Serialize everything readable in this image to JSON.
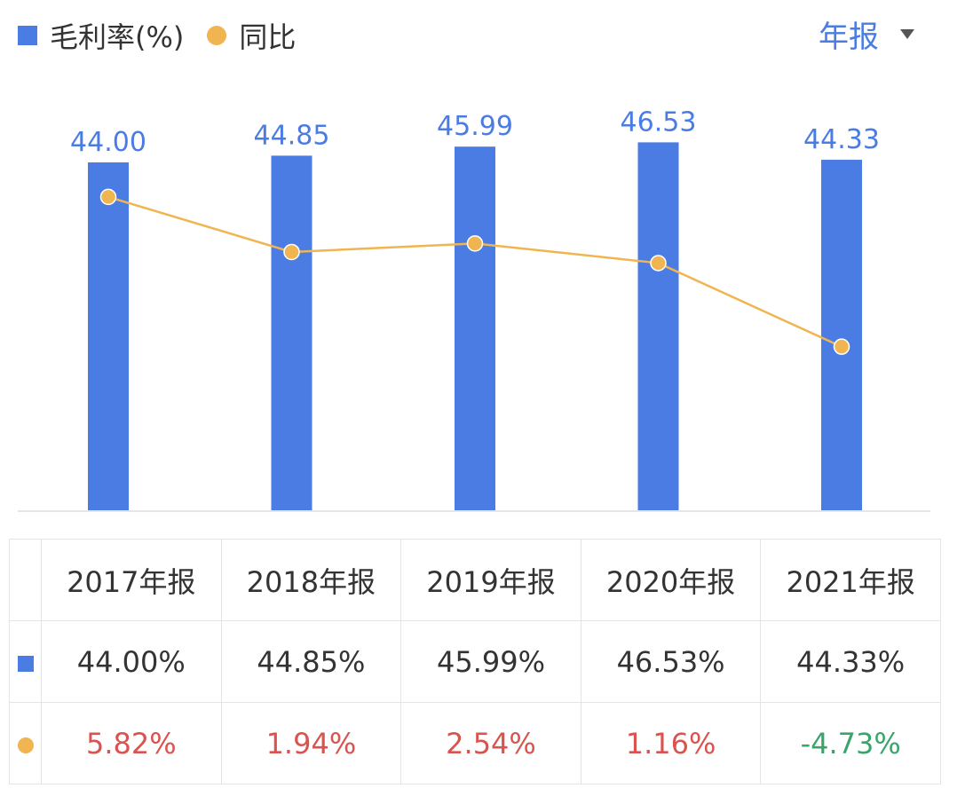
{
  "legend": {
    "bar_label": "毛利率(%)",
    "line_label": "同比"
  },
  "period_selector": {
    "label": "年报"
  },
  "colors": {
    "bar": "#4a7ce3",
    "line": "#f0b551",
    "positive": "#d9534f",
    "negative": "#3aa56b",
    "axis": "#e6e6e6"
  },
  "chart_data": {
    "type": "bar",
    "categories": [
      "2017年报",
      "2018年报",
      "2019年报",
      "2020年报",
      "2021年报"
    ],
    "series": [
      {
        "name": "毛利率(%)",
        "type": "bar",
        "values": [
          44.0,
          44.85,
          45.99,
          46.53,
          44.33
        ],
        "data_labels": [
          "44.00",
          "44.85",
          "45.99",
          "46.53",
          "44.33"
        ]
      },
      {
        "name": "同比",
        "type": "line",
        "values": [
          5.82,
          1.94,
          2.54,
          1.16,
          -4.73
        ]
      }
    ],
    "legend_position": "top-left",
    "grid": false
  },
  "table": {
    "headers": [
      "2017年报",
      "2018年报",
      "2019年报",
      "2020年报",
      "2021年报"
    ],
    "margin_row": [
      "44.00%",
      "44.85%",
      "45.99%",
      "46.53%",
      "44.33%"
    ],
    "yoy_row": [
      "5.82%",
      "1.94%",
      "2.54%",
      "1.16%",
      "-4.73%"
    ]
  }
}
